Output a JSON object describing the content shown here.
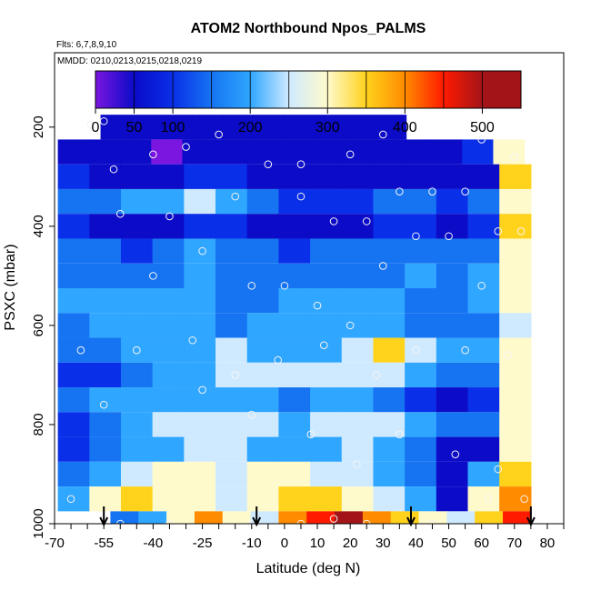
{
  "chart_data": {
    "type": "heatmap",
    "title": "ATOM2 Northbound Npos_PALMS",
    "flights_note": "Flts: 6,7,8,9,10",
    "dates_note": "MMDD: 0210,0213,0215,0218,0219",
    "xlabel": "Latitude (deg N)",
    "ylabel": "PSXC (mbar)",
    "xlim": [
      -70,
      85
    ],
    "ylim": [
      1000,
      50
    ],
    "y_reversed": true,
    "x_ticks": [
      -70,
      -55,
      -40,
      -25,
      -10,
      0,
      10,
      20,
      30,
      40,
      50,
      60,
      70,
      80
    ],
    "x_minor_ticks": [
      -65,
      -60,
      -50,
      -45,
      -35,
      -30,
      -20,
      -15,
      -5,
      5,
      15,
      25,
      35,
      45,
      55,
      65,
      75,
      85
    ],
    "y_ticks": [
      200,
      400,
      600,
      800,
      1000
    ],
    "colorbar": {
      "ticks": [
        0,
        50,
        100,
        200,
        300,
        400,
        500
      ],
      "range": [
        0,
        550
      ],
      "boundaries": [
        0,
        50,
        100,
        150,
        200,
        250,
        300,
        350,
        400,
        450,
        500,
        550
      ],
      "colors": [
        "#7a16e0",
        "#0b0bc8",
        "#0a2fe8",
        "#1674f2",
        "#2fa6ff",
        "#cfeaff",
        "#fffacc",
        "#ffd21c",
        "#ff8b00",
        "#ff1a00",
        "#a31418"
      ]
    },
    "profile_markers_lat": [
      -55,
      -8.5,
      38.5,
      75
    ],
    "sample_rows": [
      {
        "p": 200,
        "lat": [
          -56,
          37
        ],
        "v": [
          60,
          70,
          65,
          80,
          70,
          60,
          55,
          60,
          75,
          60
        ]
      },
      {
        "p": 250,
        "lat": [
          -69,
          73
        ],
        "v": [
          90,
          75,
          60,
          40,
          70,
          85,
          80,
          50,
          70,
          60,
          70,
          85,
          60,
          120,
          300
        ]
      },
      {
        "p": 300,
        "lat": [
          -69,
          75
        ],
        "v": [
          110,
          90,
          80,
          90,
          130,
          100,
          60,
          90,
          80,
          60,
          75,
          90,
          60,
          90,
          380
        ]
      },
      {
        "p": 350,
        "lat": [
          -69,
          75
        ],
        "v": [
          150,
          170,
          200,
          230,
          260,
          240,
          180,
          110,
          130,
          140,
          150,
          180,
          140,
          180,
          330
        ]
      },
      {
        "p": 400,
        "lat": [
          -69,
          75
        ],
        "v": [
          100,
          90,
          80,
          70,
          100,
          120,
          90,
          70,
          80,
          90,
          100,
          100,
          90,
          130,
          360
        ]
      },
      {
        "p": 450,
        "lat": [
          -69,
          75
        ],
        "v": [
          170,
          150,
          130,
          160,
          200,
          180,
          150,
          140,
          150,
          160,
          150,
          170,
          160,
          180,
          310
        ]
      },
      {
        "p": 500,
        "lat": [
          -69,
          75
        ],
        "v": [
          160,
          170,
          190,
          180,
          200,
          190,
          170,
          170,
          180,
          190,
          190,
          200,
          190,
          210,
          300
        ]
      },
      {
        "p": 550,
        "lat": [
          -69,
          75
        ],
        "v": [
          200,
          210,
          230,
          240,
          210,
          190,
          160,
          200,
          210,
          210,
          200,
          190,
          180,
          200,
          300
        ]
      },
      {
        "p": 600,
        "lat": [
          -69,
          75
        ],
        "v": [
          180,
          200,
          220,
          210,
          200,
          190,
          200,
          210,
          230,
          220,
          200,
          170,
          160,
          190,
          290
        ]
      },
      {
        "p": 650,
        "lat": [
          -69,
          75
        ],
        "v": [
          150,
          170,
          200,
          230,
          240,
          250,
          230,
          220,
          240,
          260,
          380,
          250,
          200,
          230,
          320
        ]
      },
      {
        "p": 700,
        "lat": [
          -69,
          75
        ],
        "v": [
          120,
          140,
          160,
          200,
          240,
          260,
          270,
          260,
          250,
          270,
          280,
          230,
          150,
          170,
          330
        ]
      },
      {
        "p": 750,
        "lat": [
          -69,
          75
        ],
        "v": [
          180,
          200,
          220,
          240,
          230,
          220,
          200,
          190,
          210,
          200,
          190,
          120,
          90,
          120,
          300
        ]
      },
      {
        "p": 800,
        "lat": [
          -69,
          75
        ],
        "v": [
          100,
          150,
          200,
          250,
          270,
          280,
          260,
          240,
          270,
          280,
          250,
          200,
          150,
          180,
          310
        ]
      },
      {
        "p": 850,
        "lat": [
          -69,
          75
        ],
        "v": [
          140,
          170,
          200,
          220,
          250,
          260,
          240,
          230,
          240,
          250,
          230,
          150,
          60,
          90,
          320
        ]
      },
      {
        "p": 900,
        "lat": [
          -69,
          75
        ],
        "v": [
          180,
          220,
          290,
          320,
          340,
          280,
          300,
          320,
          290,
          260,
          200,
          180,
          50,
          200,
          360
        ]
      },
      {
        "p": 950,
        "lat": [
          -69,
          75
        ],
        "v": [
          200,
          330,
          360,
          330,
          300,
          280,
          310,
          350,
          360,
          330,
          280,
          200,
          80,
          330,
          420
        ]
      },
      {
        "p": 1000,
        "lat": [
          -53,
          75
        ],
        "v": [
          180,
          230,
          300,
          420,
          320,
          280,
          440,
          480,
          500,
          420,
          380,
          330,
          250,
          350,
          460
        ]
      }
    ],
    "sample_points": [
      [
        -59,
        195
      ],
      [
        -55,
        188
      ],
      [
        -40,
        255
      ],
      [
        -30,
        240
      ],
      [
        -20,
        215
      ],
      [
        -5,
        275
      ],
      [
        5,
        275
      ],
      [
        20,
        255
      ],
      [
        30,
        215
      ],
      [
        60,
        225
      ],
      [
        70,
        260
      ],
      [
        -52,
        285
      ],
      [
        -35,
        380
      ],
      [
        -15,
        340
      ],
      [
        5,
        340
      ],
      [
        15,
        390
      ],
      [
        25,
        390
      ],
      [
        35,
        330
      ],
      [
        45,
        330
      ],
      [
        55,
        330
      ],
      [
        65,
        410
      ],
      [
        72,
        410
      ],
      [
        -50,
        375
      ],
      [
        -40,
        500
      ],
      [
        -25,
        450
      ],
      [
        -10,
        520
      ],
      [
        0,
        520
      ],
      [
        10,
        560
      ],
      [
        20,
        600
      ],
      [
        30,
        480
      ],
      [
        40,
        420
      ],
      [
        50,
        420
      ],
      [
        60,
        520
      ],
      [
        -62,
        650
      ],
      [
        -45,
        650
      ],
      [
        -28,
        630
      ],
      [
        -15,
        700
      ],
      [
        -2,
        670
      ],
      [
        12,
        640
      ],
      [
        28,
        700
      ],
      [
        40,
        650
      ],
      [
        55,
        650
      ],
      [
        68,
        660
      ],
      [
        -55,
        760
      ],
      [
        -25,
        730
      ],
      [
        -10,
        780
      ],
      [
        8,
        820
      ],
      [
        22,
        880
      ],
      [
        35,
        820
      ],
      [
        52,
        860
      ],
      [
        65,
        890
      ],
      [
        73,
        950
      ],
      [
        -65,
        950
      ],
      [
        -50,
        1000
      ],
      [
        -35,
        1000
      ],
      [
        -10,
        1000
      ],
      [
        5,
        1000
      ],
      [
        15,
        990
      ],
      [
        25,
        1000
      ],
      [
        45,
        1000
      ],
      [
        62,
        950
      ]
    ]
  }
}
